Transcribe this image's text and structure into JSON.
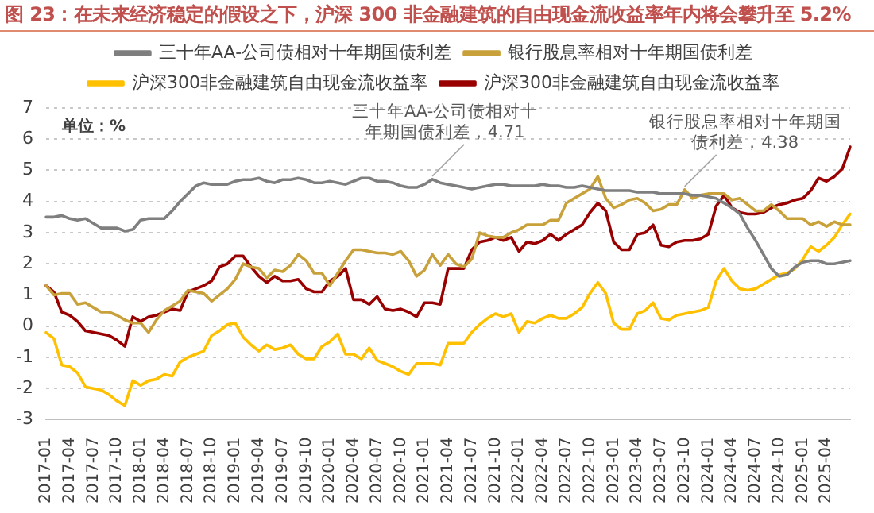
{
  "chart_data": {
    "type": "line",
    "title": "图 23：在未来经济稳定的假设之下，沪深 300 非金融建筑的自由现金流收益率年内将会攀升至 5.2%",
    "ylabel": "单位：%",
    "categories": [
      "2017-01",
      null,
      null,
      "2017-04",
      null,
      null,
      "2017-07",
      null,
      null,
      "2017-10",
      null,
      null,
      "2018-01",
      null,
      null,
      "2018-04",
      null,
      null,
      "2018-07",
      null,
      null,
      "2018-10",
      null,
      null,
      "2019-01",
      null,
      null,
      "2019-04",
      null,
      null,
      "2019-07",
      null,
      null,
      "2019-10",
      null,
      null,
      "2020-01",
      null,
      null,
      "2020-04",
      null,
      null,
      "2020-07",
      null,
      null,
      "2020-10",
      null,
      null,
      "2021-01",
      null,
      null,
      "2021-04",
      null,
      null,
      "2021-07",
      null,
      null,
      "2021-10",
      null,
      null,
      "2022-01",
      null,
      null,
      "2022-04",
      null,
      null,
      "2022-07",
      null,
      null,
      "2022-10",
      null,
      null,
      "2023-01",
      null,
      null,
      "2023-04",
      null,
      null,
      "2023-07",
      null,
      null,
      "2023-10",
      null,
      null,
      "2024-01",
      null,
      null,
      "2024-04",
      null,
      null,
      "2024-07",
      null,
      null,
      "2024-10",
      null,
      null,
      "2025-01",
      null,
      null,
      "2025-04",
      null,
      null,
      null
    ],
    "series": [
      {
        "name": "三十年AA-公司债相对十年期国债利差",
        "color": "#7f7f7f",
        "values": [
          3.5,
          3.5,
          3.55,
          3.45,
          3.4,
          3.45,
          3.3,
          3.15,
          3.15,
          3.15,
          3.05,
          3.1,
          3.4,
          3.45,
          3.45,
          3.45,
          3.7,
          4.0,
          4.25,
          4.5,
          4.6,
          4.55,
          4.55,
          4.55,
          4.65,
          4.7,
          4.7,
          4.75,
          4.65,
          4.6,
          4.7,
          4.7,
          4.75,
          4.7,
          4.6,
          4.6,
          4.65,
          4.6,
          4.55,
          4.65,
          4.75,
          4.75,
          4.65,
          4.65,
          4.6,
          4.5,
          4.45,
          4.45,
          4.55,
          4.71,
          4.6,
          4.55,
          4.5,
          4.45,
          4.4,
          4.45,
          4.5,
          4.55,
          4.55,
          4.5,
          4.5,
          4.5,
          4.5,
          4.55,
          4.5,
          4.5,
          4.45,
          4.45,
          4.5,
          4.45,
          4.4,
          4.35,
          4.35,
          4.35,
          4.35,
          4.3,
          4.3,
          4.3,
          4.25,
          4.25,
          4.25,
          4.25,
          4.2,
          4.2,
          4.15,
          4.1,
          3.95,
          3.8,
          3.6,
          3.15,
          2.75,
          2.3,
          1.85,
          1.6,
          1.65,
          1.9,
          2.05,
          2.1,
          2.1,
          2.0,
          2.0,
          2.05,
          2.1
        ]
      },
      {
        "name": "银行股息率相对十年期国债利差",
        "color": "#c9a13b",
        "values": [
          1.3,
          1.0,
          1.05,
          1.05,
          0.7,
          0.75,
          0.6,
          0.45,
          0.45,
          0.35,
          0.2,
          0.1,
          0.1,
          -0.2,
          0.2,
          0.5,
          0.65,
          0.8,
          1.15,
          1.1,
          1.05,
          0.8,
          1.0,
          1.2,
          1.5,
          2.0,
          1.9,
          1.85,
          1.55,
          1.8,
          1.75,
          1.95,
          2.3,
          2.1,
          1.7,
          1.7,
          1.3,
          1.7,
          2.1,
          2.45,
          2.45,
          2.4,
          2.35,
          2.35,
          2.3,
          2.4,
          2.1,
          1.6,
          1.8,
          2.3,
          1.95,
          2.3,
          2.0,
          1.9,
          2.15,
          3.0,
          2.9,
          2.85,
          2.85,
          3.0,
          3.1,
          3.25,
          3.25,
          3.25,
          3.4,
          3.4,
          3.95,
          4.1,
          4.25,
          4.4,
          4.8,
          4.1,
          3.8,
          3.9,
          4.05,
          4.1,
          3.95,
          3.7,
          3.75,
          3.9,
          3.9,
          4.38,
          4.1,
          4.2,
          4.25,
          4.25,
          4.25,
          4.05,
          4.1,
          3.9,
          3.7,
          3.7,
          3.9,
          3.7,
          3.45,
          3.45,
          3.45,
          3.25,
          3.35,
          3.2,
          3.35,
          3.25,
          3.25
        ]
      },
      {
        "name": "沪深300非金融建筑自由现金流收益率",
        "color": "#ffc000",
        "values": [
          -0.2,
          -0.4,
          -1.25,
          -1.3,
          -1.5,
          -1.95,
          -2.0,
          -2.05,
          -2.2,
          -2.4,
          -2.55,
          -1.75,
          -1.9,
          -1.75,
          -1.7,
          -1.55,
          -1.6,
          -1.15,
          -1.0,
          -0.9,
          -0.8,
          -0.3,
          -0.15,
          0.05,
          0.1,
          -0.35,
          -0.6,
          -0.8,
          -0.6,
          -0.75,
          -0.7,
          -0.6,
          -0.9,
          -1.05,
          -1.05,
          -0.65,
          -0.5,
          -0.25,
          -0.9,
          -0.9,
          -1.05,
          -0.7,
          -1.1,
          -1.2,
          -1.3,
          -1.45,
          -1.55,
          -1.2,
          -1.2,
          -1.2,
          -1.25,
          -0.55,
          -0.55,
          -0.55,
          -0.2,
          0.05,
          0.25,
          0.4,
          0.3,
          0.4,
          -0.2,
          0.15,
          0.1,
          0.25,
          0.35,
          0.25,
          0.25,
          0.4,
          0.6,
          1.05,
          1.4,
          1.05,
          0.1,
          -0.1,
          -0.1,
          0.4,
          0.5,
          0.75,
          0.25,
          0.2,
          0.35,
          0.4,
          0.45,
          0.5,
          0.6,
          1.45,
          1.85,
          1.45,
          1.2,
          1.15,
          1.2,
          1.35,
          1.5,
          1.65,
          1.7,
          1.85,
          2.15,
          2.55,
          2.4,
          2.6,
          2.85,
          3.25,
          3.6
        ]
      },
      {
        "name": "沪深300非金融建筑自由现金流收益率",
        "color": "#990000",
        "values": [
          1.3,
          1.1,
          0.45,
          0.35,
          0.15,
          -0.15,
          -0.2,
          -0.25,
          -0.3,
          -0.45,
          -0.65,
          0.3,
          0.15,
          0.3,
          0.35,
          0.45,
          0.55,
          0.5,
          1.1,
          1.2,
          1.3,
          1.45,
          1.9,
          2.0,
          2.25,
          2.25,
          1.9,
          1.6,
          1.4,
          1.6,
          1.45,
          1.45,
          1.5,
          1.2,
          1.1,
          1.1,
          1.45,
          1.6,
          1.85,
          0.85,
          0.85,
          0.7,
          0.95,
          0.55,
          0.5,
          0.55,
          0.45,
          0.3,
          0.75,
          0.75,
          0.7,
          1.85,
          1.85,
          1.85,
          2.45,
          2.7,
          2.75,
          2.85,
          2.75,
          2.85,
          2.4,
          2.7,
          2.65,
          2.75,
          2.95,
          2.75,
          2.95,
          3.1,
          3.25,
          3.65,
          3.95,
          3.7,
          2.7,
          2.45,
          2.45,
          2.95,
          3.0,
          3.25,
          2.6,
          2.55,
          2.7,
          2.75,
          2.75,
          2.8,
          2.95,
          3.85,
          4.2,
          3.8,
          3.65,
          3.6,
          3.6,
          3.65,
          3.8,
          3.9,
          3.95,
          4.05,
          4.1,
          4.35,
          4.75,
          4.65,
          4.8,
          5.05,
          5.75
        ]
      }
    ],
    "ylim": [
      -3,
      7
    ],
    "yticks": [
      -3,
      -2,
      -1,
      0,
      1,
      2,
      3,
      4,
      5,
      6,
      7
    ],
    "grid": "y",
    "legend": "top",
    "annotations": [
      {
        "text": "三十年AA-公司债相对十年期国债利差，4.71",
        "y": 4.71
      },
      {
        "text": "银行股息率相对十年期国债利差，4.38",
        "x": "2023-10",
        "y": 4.38
      }
    ]
  }
}
